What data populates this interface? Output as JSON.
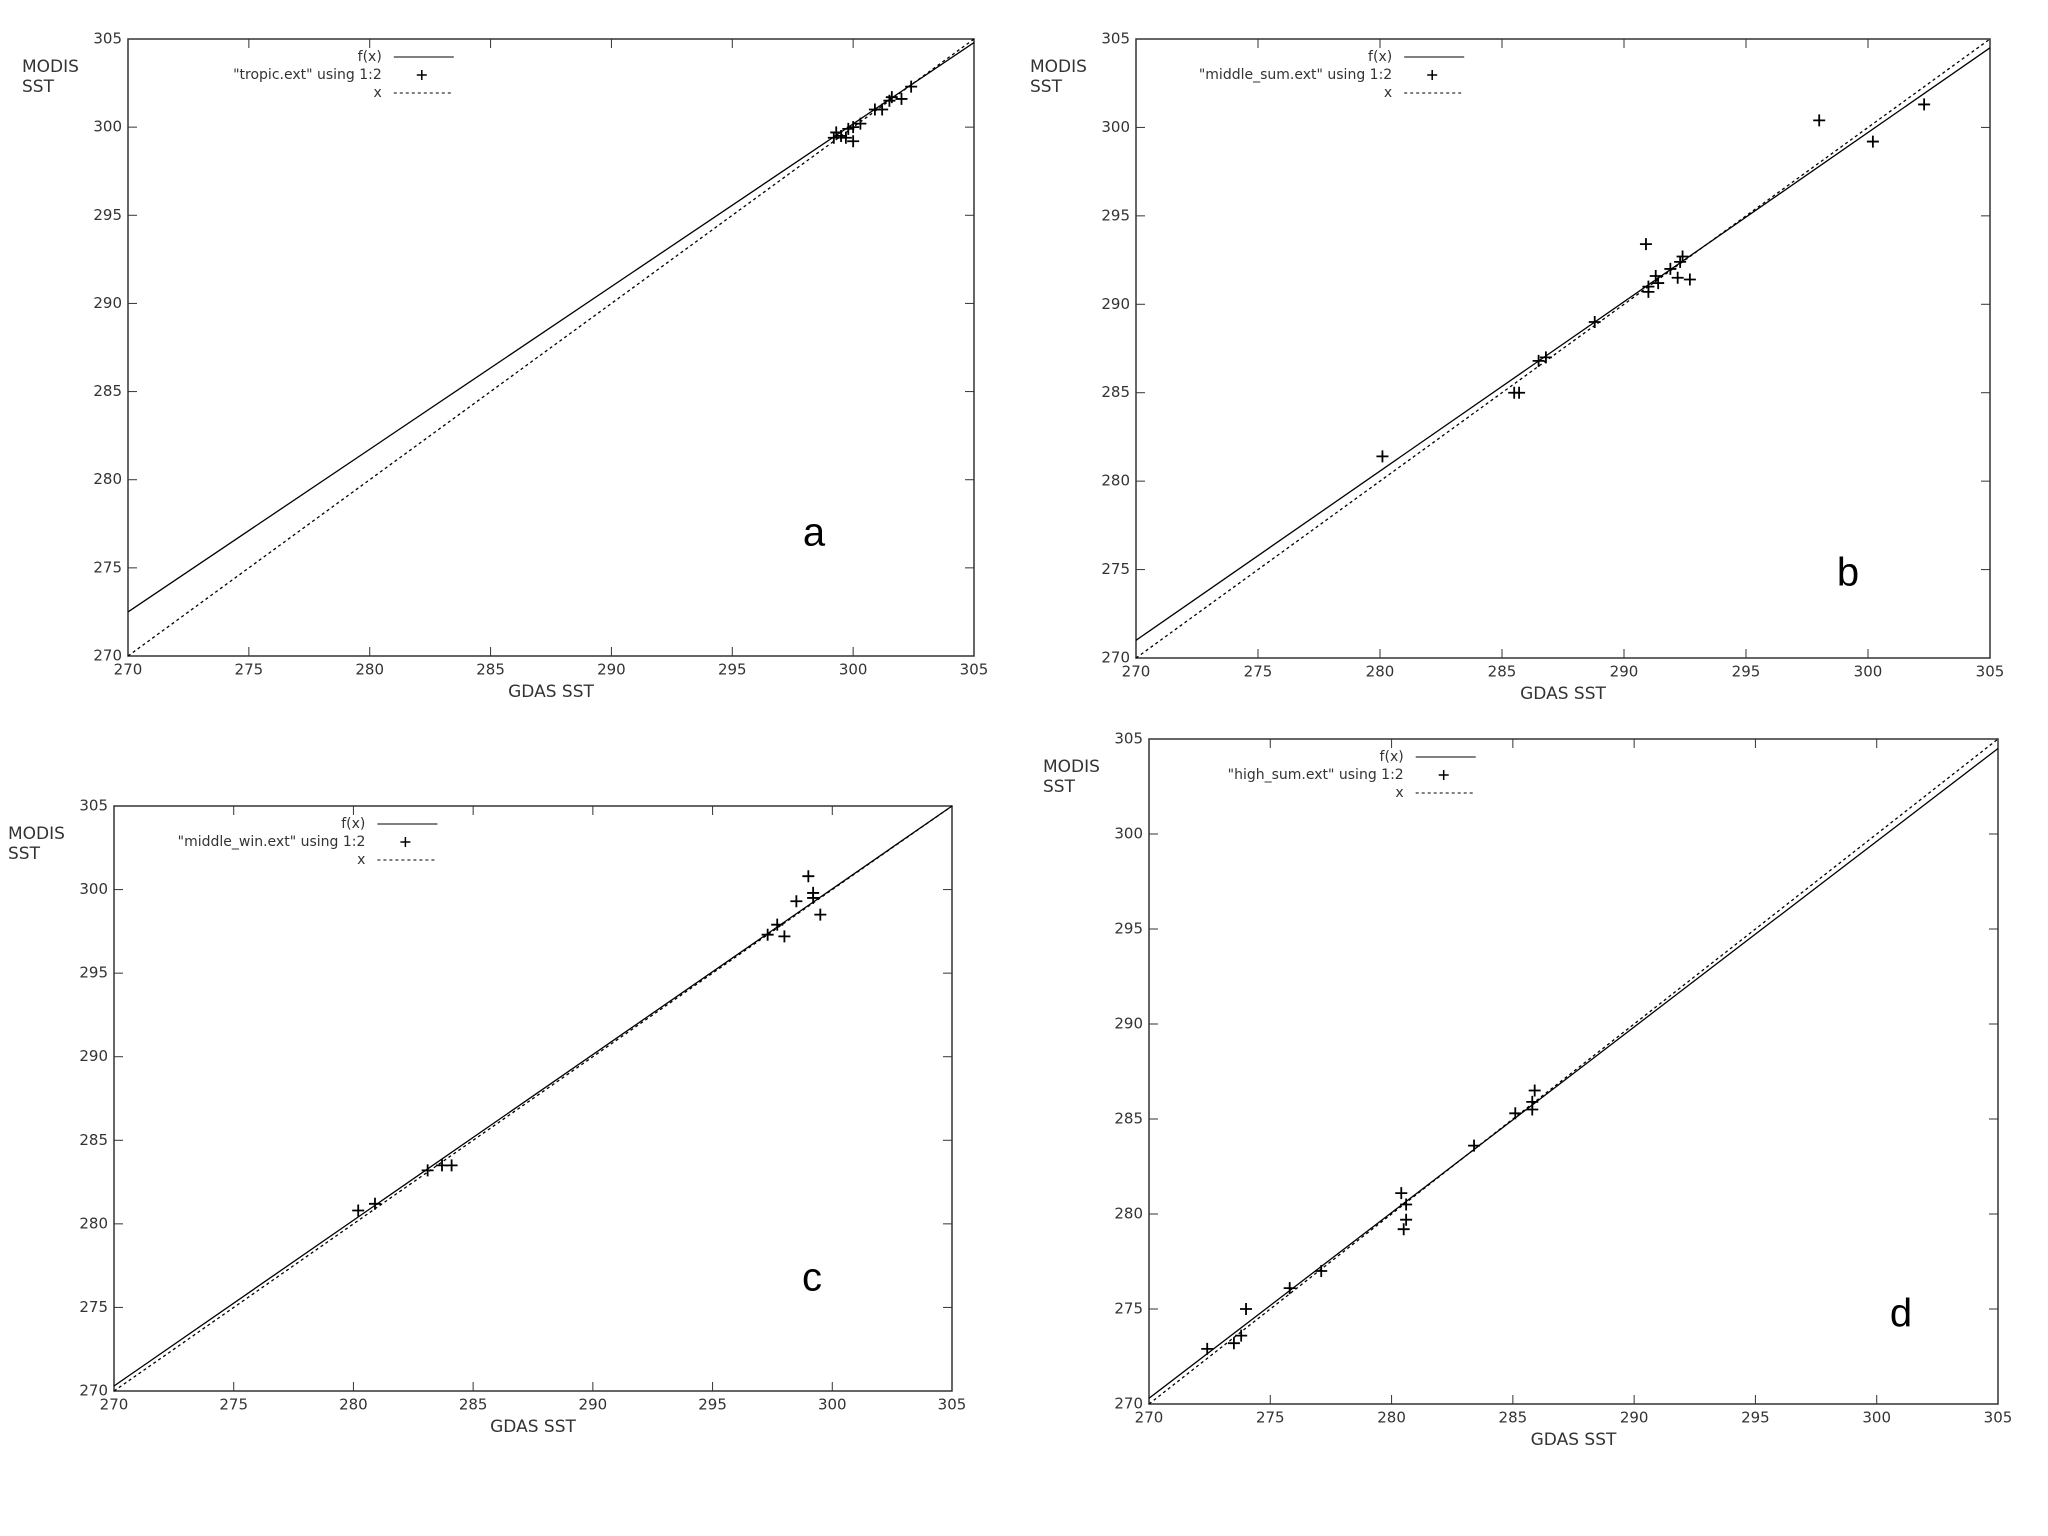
{
  "chart_data": [
    {
      "type": "scatter",
      "label": "a",
      "xlabel": "GDAS SST",
      "ylabel": [
        "MODIS",
        "SST"
      ],
      "xlim": [
        270,
        305
      ],
      "ylim": [
        270,
        305
      ],
      "xticks": [
        270,
        275,
        280,
        285,
        290,
        295,
        300,
        305
      ],
      "yticks": [
        270,
        275,
        280,
        285,
        290,
        295,
        300,
        305
      ],
      "series": [
        {
          "name": "f(x)",
          "color": "#000000",
          "style": "line",
          "x": [
            270,
            305
          ],
          "values": [
            272.5,
            304.8
          ]
        },
        {
          "name": "\"tropic.ext\" using 1:2",
          "color": "#000000",
          "style": "marker",
          "x": [
            299.2,
            299.5,
            299.3,
            299.7,
            300,
            300,
            300.3,
            299.8,
            300.9,
            301.2,
            301.6,
            301.5,
            302,
            302.4
          ],
          "values": [
            299.4,
            299.5,
            299.7,
            299.4,
            299.2,
            300,
            300.2,
            299.9,
            301,
            301,
            301.7,
            301.5,
            301.6,
            302.3
          ]
        },
        {
          "name": "x",
          "color": "#000000",
          "style": "dotted",
          "x": [
            270,
            305
          ],
          "values": [
            270,
            305
          ]
        }
      ]
    },
    {
      "type": "scatter",
      "label": "b",
      "xlabel": "GDAS SST",
      "ylabel": [
        "MODIS",
        "SST"
      ],
      "xlim": [
        270,
        305
      ],
      "ylim": [
        270,
        305
      ],
      "xticks": [
        270,
        275,
        280,
        285,
        290,
        295,
        300,
        305
      ],
      "yticks": [
        270,
        275,
        280,
        285,
        290,
        295,
        300,
        305
      ],
      "series": [
        {
          "name": "f(x)",
          "color": "#000000",
          "style": "line",
          "x": [
            270,
            305
          ],
          "values": [
            271,
            304.5
          ]
        },
        {
          "name": "\"middle_sum.ext\" using 1:2",
          "color": "#000000",
          "style": "marker",
          "x": [
            280.1,
            285.5,
            285.7,
            286.5,
            286.8,
            288.8,
            290.9,
            291,
            291,
            291.3,
            291.4,
            291.9,
            292.3,
            292.4,
            292.2,
            292.7,
            298,
            300.2,
            302.3
          ],
          "values": [
            281.4,
            285,
            285,
            286.8,
            287,
            289,
            293.4,
            291,
            290.7,
            291.6,
            291.2,
            292,
            292.4,
            292.7,
            291.5,
            291.4,
            300.4,
            299.2,
            301.3
          ]
        },
        {
          "name": "x",
          "color": "#000000",
          "style": "dotted",
          "x": [
            270,
            305
          ],
          "values": [
            270,
            305
          ]
        }
      ]
    },
    {
      "type": "scatter",
      "label": "c",
      "xlabel": "GDAS SST",
      "ylabel": [
        "MODIS",
        "SST"
      ],
      "xlim": [
        270,
        305
      ],
      "ylim": [
        270,
        305
      ],
      "xticks": [
        270,
        275,
        280,
        285,
        290,
        295,
        300,
        305
      ],
      "yticks": [
        270,
        275,
        280,
        285,
        290,
        295,
        300,
        305
      ],
      "series": [
        {
          "name": "f(x)",
          "color": "#000000",
          "style": "line",
          "x": [
            270,
            305
          ],
          "values": [
            270.3,
            305
          ]
        },
        {
          "name": "\"middle_win.ext\" using 1:2",
          "color": "#000000",
          "style": "marker",
          "x": [
            280.2,
            280.9,
            283.1,
            283.7,
            284.1,
            297.3,
            297.7,
            298,
            298.5,
            299,
            299.2,
            299.2,
            299.5
          ],
          "values": [
            280.8,
            281.2,
            283.2,
            283.5,
            283.5,
            297.3,
            297.9,
            297.2,
            299.3,
            300.8,
            299.8,
            299.5,
            298.5
          ]
        },
        {
          "name": "x",
          "color": "#000000",
          "style": "dotted",
          "x": [
            270,
            305
          ],
          "values": [
            270,
            305
          ]
        }
      ]
    },
    {
      "type": "scatter",
      "label": "d",
      "xlabel": "GDAS SST",
      "ylabel": [
        "MODIS",
        "SST"
      ],
      "xlim": [
        270,
        305
      ],
      "ylim": [
        270,
        305
      ],
      "xticks": [
        270,
        275,
        280,
        285,
        290,
        295,
        300,
        305
      ],
      "yticks": [
        270,
        275,
        280,
        285,
        290,
        295,
        300,
        305
      ],
      "series": [
        {
          "name": "f(x)",
          "color": "#000000",
          "style": "line",
          "x": [
            270,
            305
          ],
          "values": [
            270.3,
            304.5
          ]
        },
        {
          "name": "\"high_sum.ext\" using 1:2",
          "color": "#000000",
          "style": "marker",
          "x": [
            272.4,
            273.5,
            273.8,
            274,
            275.8,
            277.1,
            280.4,
            280.6,
            280.6,
            280.5,
            283.4,
            285.1,
            285.8,
            285.9,
            285.8
          ],
          "values": [
            272.9,
            273.2,
            273.6,
            275,
            276.1,
            277,
            281.1,
            280.5,
            279.7,
            279.2,
            283.6,
            285.3,
            285.5,
            286.5,
            285.9
          ]
        },
        {
          "name": "x",
          "color": "#000000",
          "style": "dotted",
          "x": [
            270,
            305
          ],
          "values": [
            270,
            305
          ]
        }
      ]
    }
  ]
}
